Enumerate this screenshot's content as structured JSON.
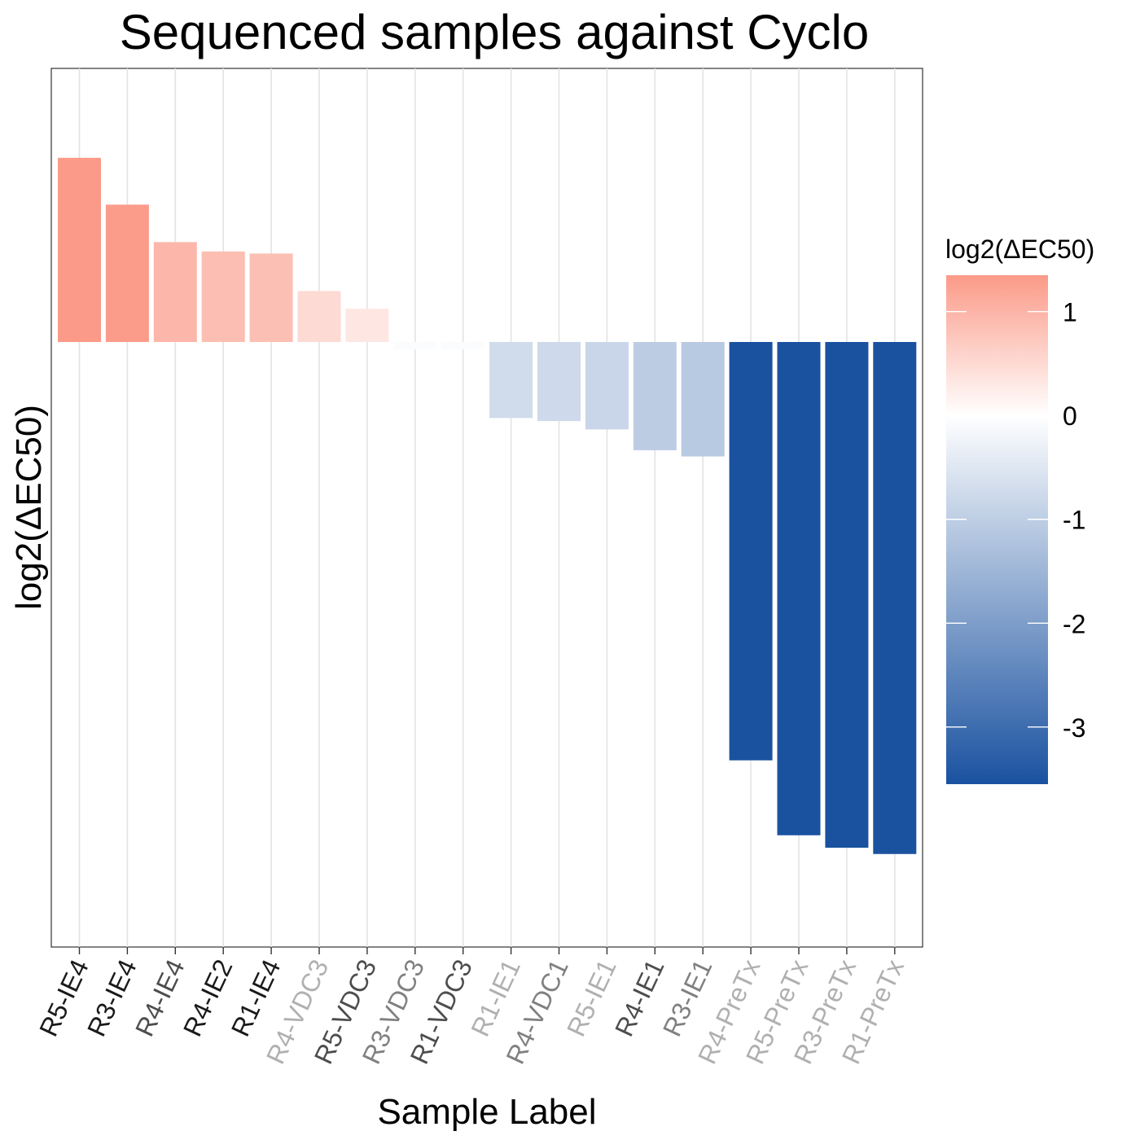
{
  "chart_data": {
    "type": "bar",
    "title": "Sequenced samples against Cyclo",
    "xlabel": "Sample Label",
    "ylabel": "log2(ΔEC50)",
    "ylim": [
      -4.6,
      3.5
    ],
    "grid": "vertical",
    "categories": [
      "R5-IE4",
      "R3-IE4",
      "R4-IE4",
      "R4-IE2",
      "R1-IE4",
      "R4-VDC3",
      "R5-VDC3",
      "R3-VDC3",
      "R1-VDC3",
      "R1-IE1",
      "R4-VDC1",
      "R5-IE1",
      "R4-IE1",
      "R3-IE1",
      "R4-PreTx",
      "R5-PreTx",
      "R3-PreTx",
      "R1-PreTx"
    ],
    "values": [
      1.77,
      1.32,
      0.96,
      0.87,
      0.85,
      0.49,
      0.32,
      -0.07,
      -0.07,
      -0.73,
      -0.76,
      -0.84,
      -1.04,
      -1.1,
      -4.02,
      -4.74,
      -4.86,
      -4.92
    ],
    "label_colors": [
      "#1a1a1a",
      "#1a1a1a",
      "#4d4d4d",
      "#1a1a1a",
      "#1a1a1a",
      "#b0b0b0",
      "#4d4d4d",
      "#808080",
      "#4d4d4d",
      "#b0b0b0",
      "#808080",
      "#b0b0b0",
      "#4d4d4d",
      "#808080",
      "#b0b0b0",
      "#b0b0b0",
      "#b0b0b0",
      "#b0b0b0"
    ],
    "legend": {
      "title": "log2(ΔEC50)",
      "position": "right",
      "range": [
        -3.55,
        1.35
      ],
      "ticks": [
        1,
        0,
        -1,
        -2,
        -3
      ],
      "tick_labels": [
        "1",
        "0",
        "-1",
        "-2",
        "-3"
      ],
      "low_color": "#1a52a0",
      "mid_color": "#ffffff",
      "high_color": "#fb9a88"
    }
  }
}
